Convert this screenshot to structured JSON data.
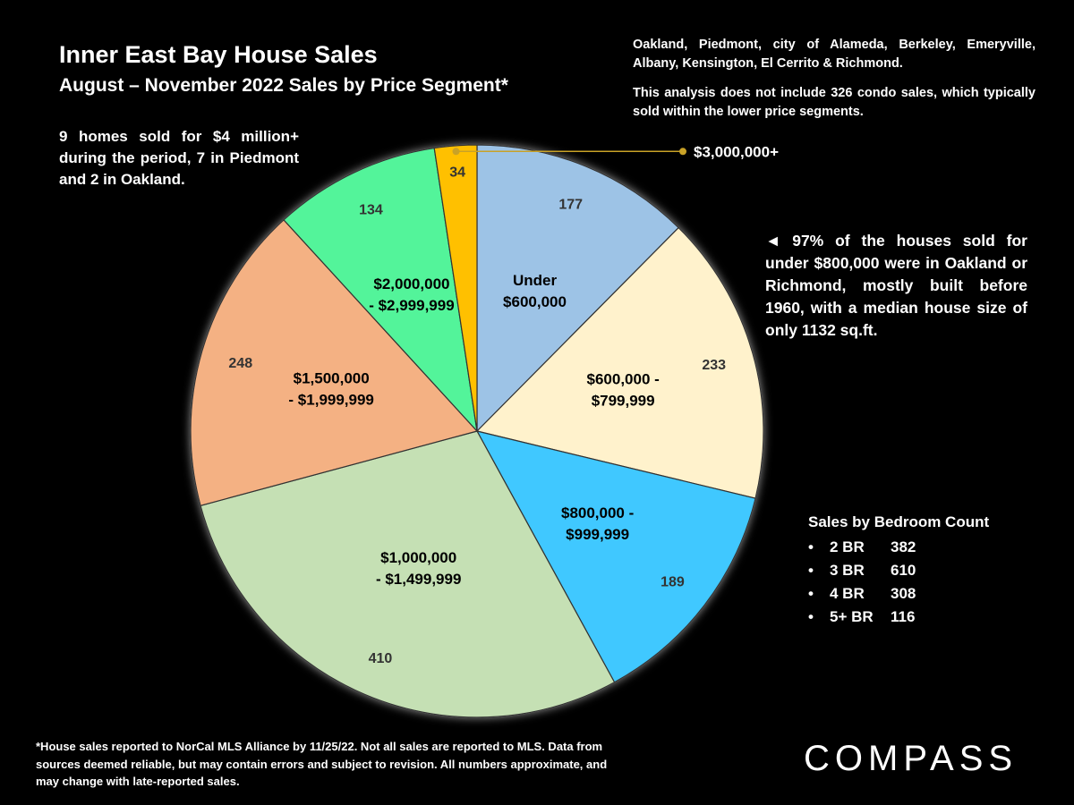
{
  "title": "Inner East Bay House Sales",
  "subtitle": "August – November 2022 Sales by Price Segment*",
  "notes": {
    "left": "9 homes sold for $4 million+ during the period, 7 in Piedmont and 2 in Oakland.",
    "regions": "Oakland, Piedmont, city of Alameda, Berkeley, Emeryville, Albany, Kensington, El Cerrito & Richmond.",
    "condo": "This analysis does not include 326 condo sales, which typically sold within the lower price segments.",
    "right": "◄ 97% of the houses sold for under $800,000 were in Oakland or Richmond, mostly built before 1960, with a median house size of only 1132 sq.ft."
  },
  "bedrooms": {
    "heading": "Sales by Bedroom Count",
    "bullet": "•",
    "items": [
      {
        "label": "2 BR",
        "value": "382"
      },
      {
        "label": "3 BR",
        "value": "610"
      },
      {
        "label": "4 BR",
        "value": "308"
      },
      {
        "label": "5+ BR",
        "value": "116"
      }
    ]
  },
  "footnote": "*House sales reported to NorCal MLS Alliance by 11/25/22. Not all sales are reported to MLS. Data from sources deemed reliable, but may contain errors and subject to revision. All numbers approximate, and may change with late-reported sales.",
  "logo": "COMPASS",
  "chart_data": {
    "type": "pie",
    "start": "12 o'clock, clockwise",
    "slices": [
      {
        "label": [
          "Under",
          "$600,000"
        ],
        "value": 177,
        "color": "#9DC3E6"
      },
      {
        "label": [
          "$600,000 -",
          "$799,999"
        ],
        "value": 233,
        "color": "#FFF2CC"
      },
      {
        "label": [
          "$800,000 -",
          "$999,999"
        ],
        "value": 189,
        "color": "#3FC8FF"
      },
      {
        "label": [
          "$1,000,000",
          "- $1,499,999"
        ],
        "value": 410,
        "color": "#C5E0B4"
      },
      {
        "label": [
          "$1,500,000",
          "- $1,999,999"
        ],
        "value": 248,
        "color": "#F4B183"
      },
      {
        "label": [
          "$2,000,000",
          "- $2,999,999"
        ],
        "value": 134,
        "color": "#53F49A"
      },
      {
        "label": [],
        "value": 34,
        "color": "#FFC000",
        "callout": "$3,000,000+"
      }
    ]
  }
}
